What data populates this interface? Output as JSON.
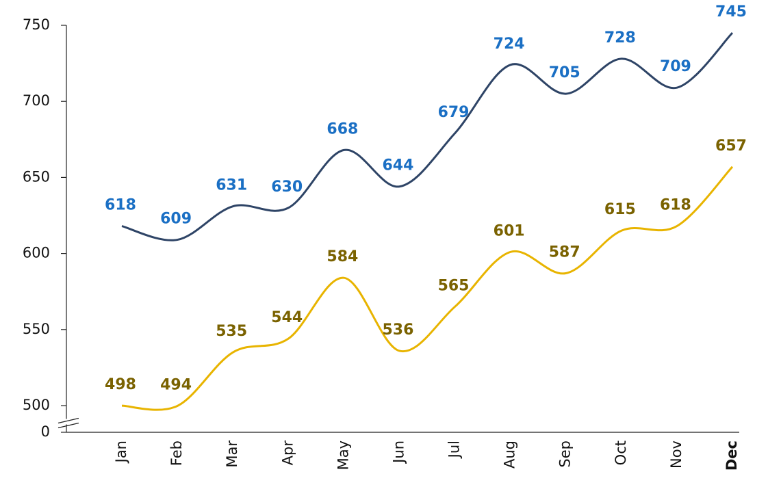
{
  "chart_data": {
    "type": "line",
    "categories": [
      "Jan",
      "Feb",
      "Mar",
      "Apr",
      "May",
      "Jun",
      "Jul",
      "Aug",
      "Sep",
      "Oct",
      "Nov",
      "Dec"
    ],
    "series": [
      {
        "color": "#2e4466",
        "label_color": "#1a6fc4",
        "values": [
          618,
          609,
          631,
          630,
          668,
          644,
          679,
          724,
          705,
          728,
          709,
          745
        ]
      },
      {
        "color": "#e8b400",
        "label_color": "#7a6200",
        "values": [
          498,
          494,
          535,
          544,
          584,
          536,
          565,
          601,
          587,
          615,
          618,
          657
        ]
      }
    ],
    "ylim": [
      0,
      750
    ],
    "yticks": [
      0,
      500,
      550,
      600,
      650,
      700,
      750
    ],
    "axis_break": true,
    "smooth": true,
    "bold_category_index": 11
  }
}
